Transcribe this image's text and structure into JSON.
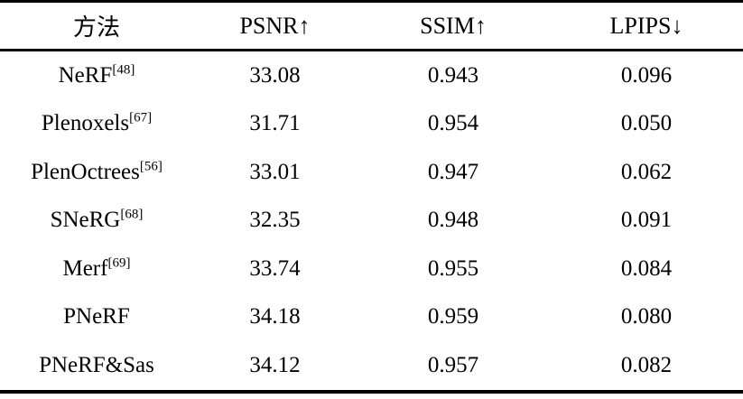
{
  "table": {
    "headers": [
      "方法",
      "PSNR↑",
      "SSIM↑",
      "LPIPS↓"
    ],
    "rows": [
      {
        "method": "NeRF",
        "ref": "[48]",
        "psnr": "33.08",
        "ssim": "0.943",
        "lpips": "0.096"
      },
      {
        "method": "Plenoxels",
        "ref": "[67]",
        "psnr": "31.71",
        "ssim": "0.954",
        "lpips": "0.050"
      },
      {
        "method": "PlenOctrees",
        "ref": "[56]",
        "psnr": "33.01",
        "ssim": "0.947",
        "lpips": "0.062"
      },
      {
        "method": "SNeRG",
        "ref": "[68]",
        "psnr": "32.35",
        "ssim": "0.948",
        "lpips": "0.091"
      },
      {
        "method": "Merf",
        "ref": "[69]",
        "psnr": "33.74",
        "ssim": "0.955",
        "lpips": "0.084"
      },
      {
        "method": "PNeRF",
        "ref": "",
        "psnr": "34.18",
        "ssim": "0.959",
        "lpips": "0.080"
      },
      {
        "method": "PNeRF&Sas",
        "ref": "",
        "psnr": "34.12",
        "ssim": "0.957",
        "lpips": "0.082"
      }
    ],
    "colors": {
      "text": "#000000",
      "rule": "#000000",
      "background": "#ffffff"
    }
  }
}
